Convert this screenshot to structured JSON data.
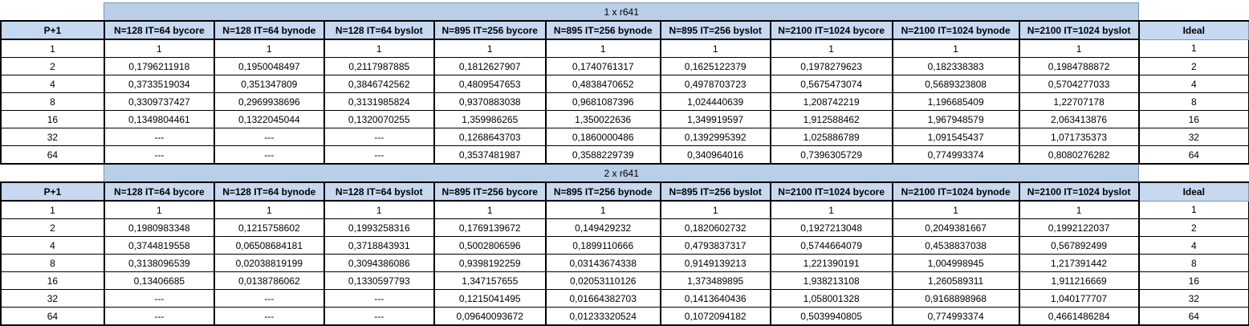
{
  "tables": [
    {
      "title": "1 x r641",
      "headers": [
        "P+1",
        "N=128  IT=64 bycore",
        "N=128  IT=64 bynode",
        "N=128  IT=64 byslot",
        "N=895 IT=256 bycore",
        "N=895 IT=256 bynode",
        "N=895 IT=256 byslot",
        "N=2100 IT=1024 bycore",
        "N=2100 IT=1024 bynode",
        "N=2100 IT=1024 byslot"
      ],
      "ideal_header": "Ideal",
      "rows": [
        {
          "p": "1",
          "values": [
            "1",
            "1",
            "1",
            "1",
            "1",
            "1",
            "1",
            "1",
            "1"
          ],
          "ideal": "1"
        },
        {
          "p": "2",
          "values": [
            "0,1796211918",
            "0,1950048497",
            "0,2117987885",
            "0,1812627907",
            "0,1740761317",
            "0,1625122379",
            "0,1978279623",
            "0,182338383",
            "0,1984788872"
          ],
          "ideal": "2"
        },
        {
          "p": "4",
          "values": [
            "0,3733519034",
            "0,351347809",
            "0,3846742562",
            "0,4809547653",
            "0,4838470652",
            "0,4978703723",
            "0,5675473074",
            "0,5689323808",
            "0,5704277033"
          ],
          "ideal": "4"
        },
        {
          "p": "8",
          "values": [
            "0,3309737427",
            "0,2969938696",
            "0,3131985824",
            "0,9370883038",
            "0,9681087396",
            "1,024440639",
            "1,208742219",
            "1,196685409",
            "1,22707178"
          ],
          "ideal": "8"
        },
        {
          "p": "16",
          "values": [
            "0,1349804461",
            "0,1322045044",
            "0,1320070255",
            "1,359986265",
            "1,350022636",
            "1,349919597",
            "1,912588462",
            "1,967948579",
            "2,063413876"
          ],
          "ideal": "16"
        },
        {
          "p": "32",
          "values": [
            "---",
            "---",
            "---",
            "0,1268643703",
            "0,1860000486",
            "0,1392995392",
            "1,025886789",
            "1,091545437",
            "1,071735373"
          ],
          "ideal": "32"
        },
        {
          "p": "64",
          "values": [
            "---",
            "---",
            "---",
            "0,3537481987",
            "0,3588229739",
            "0,340964016",
            "0,7396305729",
            "0,774993374",
            "0,8080276282"
          ],
          "ideal": "64"
        }
      ]
    },
    {
      "title": "2 x r641",
      "headers": [
        "P+1",
        "N=128  IT=64 bycore",
        "N=128  IT=64 bynode",
        "N=128  IT=64 byslot",
        "N=895 IT=256 bycore",
        "N=895 IT=256 bynode",
        "N=895 IT=256 byslot",
        "N=2100 IT=1024 bycore",
        "N=2100 IT=1024 bynode",
        "N=2100 IT=1024 byslot"
      ],
      "ideal_header": "Ideal",
      "rows": [
        {
          "p": "1",
          "values": [
            "1",
            "1",
            "1",
            "1",
            "1",
            "1",
            "1",
            "1",
            "1"
          ],
          "ideal": "1"
        },
        {
          "p": "2",
          "values": [
            "0,1980983348",
            "0,1215758602",
            "0,1993258316",
            "0,1769139672",
            "0,149429232",
            "0,1820602732",
            "0,1927213048",
            "0,2049381667",
            "0,1992122037"
          ],
          "ideal": "2"
        },
        {
          "p": "4",
          "values": [
            "0,3744819558",
            "0,06508684181",
            "0,3718843931",
            "0,5002806596",
            "0,1899110666",
            "0,4793837317",
            "0,5744664079",
            "0,4538837038",
            "0,567892499"
          ],
          "ideal": "4"
        },
        {
          "p": "8",
          "values": [
            "0,3138096539",
            "0,02038819199",
            "0,3094386086",
            "0,9398192259",
            "0,03143674338",
            "0,9149139213",
            "1,221390191",
            "1,004998945",
            "1,217391442"
          ],
          "ideal": "8"
        },
        {
          "p": "16",
          "values": [
            "0,13406685",
            "0,0138786062",
            "0,1330597793",
            "1,347157655",
            "0,02053110126",
            "1,373489895",
            "1,938213108",
            "1,260589311",
            "1,911216669"
          ],
          "ideal": "16"
        },
        {
          "p": "32",
          "values": [
            "---",
            "---",
            "---",
            "0,1215041495",
            "0,01664382703",
            "0,1413640436",
            "1,058001328",
            "0,9168898968",
            "1,040177707"
          ],
          "ideal": "32"
        },
        {
          "p": "64",
          "values": [
            "---",
            "---",
            "---",
            "0,09640093672",
            "0,01233320524",
            "0,1072094182",
            "0,5039940805",
            "0,774993374",
            "0,4661486284"
          ],
          "ideal": "64"
        }
      ]
    }
  ]
}
